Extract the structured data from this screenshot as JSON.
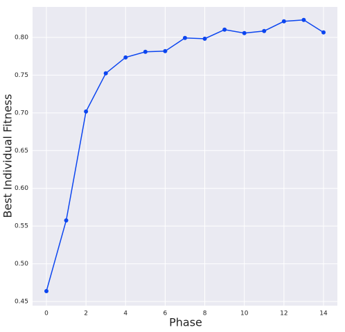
{
  "chart_data": {
    "type": "line",
    "xlabel": "Phase",
    "ylabel": "Best Individual Fitness",
    "x": [
      0,
      1,
      2,
      3,
      4,
      5,
      6,
      7,
      8,
      9,
      10,
      11,
      12,
      13,
      14
    ],
    "series": [
      {
        "color": "#0b45f0",
        "values": [
          0.4638,
          0.5575,
          0.7018,
          0.7524,
          0.7735,
          0.7809,
          0.7818,
          0.7993,
          0.7983,
          0.8103,
          0.8057,
          0.8085,
          0.8213,
          0.8232,
          0.8066
        ]
      }
    ],
    "xlim": [
      -0.7,
      14.7
    ],
    "ylim": [
      0.4445,
      0.8404
    ],
    "xticks": [
      0,
      2,
      4,
      6,
      8,
      10,
      12,
      14
    ],
    "yticks": [
      0.45,
      {
        "value": 0.5,
        "label": "0.50"
      },
      0.55,
      {
        "value": 0.6,
        "label": "0.60"
      },
      0.65,
      {
        "value": 0.7,
        "label": "0.70"
      },
      0.75,
      {
        "value": 0.8,
        "label": "0.80"
      }
    ],
    "grid": true
  }
}
